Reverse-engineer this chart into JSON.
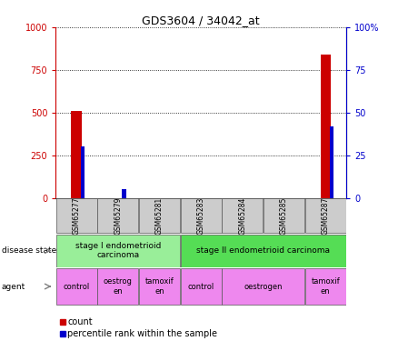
{
  "title": "GDS3604 / 34042_at",
  "samples": [
    "GSM65277",
    "GSM65279",
    "GSM65281",
    "GSM65283",
    "GSM65284",
    "GSM65285",
    "GSM65287"
  ],
  "count_values": [
    510,
    0,
    0,
    0,
    0,
    0,
    840
  ],
  "percentile_values": [
    30,
    5,
    0,
    0,
    0,
    0,
    42
  ],
  "ylim_left": [
    0,
    1000
  ],
  "ylim_right": [
    0,
    100
  ],
  "yticks_left": [
    0,
    250,
    500,
    750,
    1000
  ],
  "yticks_right": [
    0,
    25,
    50,
    75,
    100
  ],
  "ytick_labels_left": [
    "0",
    "250",
    "500",
    "750",
    "1000"
  ],
  "ytick_labels_right": [
    "0",
    "25",
    "50",
    "75",
    "100%"
  ],
  "count_color": "#cc0000",
  "percentile_color": "#0000cc",
  "disease_state_groups": [
    {
      "label": "stage I endometrioid\ncarcinoma",
      "start": 0,
      "end": 2,
      "color": "#99ee99"
    },
    {
      "label": "stage II endometrioid carcinoma",
      "start": 3,
      "end": 6,
      "color": "#55dd55"
    }
  ],
  "agent_groups": [
    {
      "label": "control",
      "start": 0,
      "end": 0,
      "color": "#ee88ee"
    },
    {
      "label": "oestrog\nen",
      "start": 1,
      "end": 1,
      "color": "#ee88ee"
    },
    {
      "label": "tamoxif\nen",
      "start": 2,
      "end": 2,
      "color": "#ee88ee"
    },
    {
      "label": "control",
      "start": 3,
      "end": 3,
      "color": "#ee88ee"
    },
    {
      "label": "oestrogen",
      "start": 4,
      "end": 5,
      "color": "#ee88ee"
    },
    {
      "label": "tamoxif\nen",
      "start": 6,
      "end": 6,
      "color": "#ee88ee"
    }
  ],
  "legend_items": [
    {
      "label": "count",
      "color": "#cc0000"
    },
    {
      "label": "percentile rank within the sample",
      "color": "#0000cc"
    }
  ],
  "tick_color_left": "#cc0000",
  "tick_color_right": "#0000cc",
  "sample_bg_color": "#cccccc",
  "disease_label": "disease state",
  "agent_label": "agent"
}
